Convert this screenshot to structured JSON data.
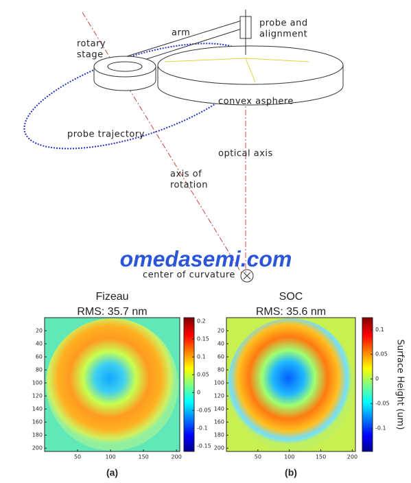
{
  "diagram": {
    "rotary_stage": [
      "rotary",
      "stage"
    ],
    "arm": "arm",
    "probe": [
      "probe and",
      "alignment"
    ],
    "asphere": "convex asphere",
    "trajectory": "probe trajectory",
    "optical_axis": "optical axis",
    "rotation_axis": [
      "axis of",
      "rotation"
    ],
    "center": "center of curvature"
  },
  "watermark": "omedasemi.com",
  "panels": [
    {
      "title": "Fizeau",
      "rms": "RMS: 35.7 nm",
      "caption": "(a)",
      "xlim": [
        0,
        205
      ],
      "ylim": [
        0,
        205
      ],
      "xticks": [
        50,
        100,
        150,
        200
      ],
      "yticks": [
        20,
        40,
        60,
        80,
        100,
        120,
        140,
        160,
        180,
        200
      ],
      "clim": [
        -0.165,
        0.21
      ],
      "cticks": [
        0.2,
        0.15,
        0.1,
        0.05,
        0,
        -0.05,
        -0.1,
        -0.15
      ]
    },
    {
      "title": "SOC",
      "rms": "RMS: 35.6 nm",
      "caption": "(b)",
      "xlim": [
        0,
        205
      ],
      "ylim": [
        0,
        205
      ],
      "xticks": [
        50,
        100,
        150,
        200
      ],
      "yticks": [
        20,
        40,
        60,
        80,
        100,
        120,
        140,
        160,
        180,
        200
      ],
      "clim": [
        -0.147,
        0.124
      ],
      "cticks": [
        0.1,
        0.05,
        0,
        -0.05,
        -0.1
      ],
      "colorbar_label": "Surface Height (um)"
    }
  ]
}
